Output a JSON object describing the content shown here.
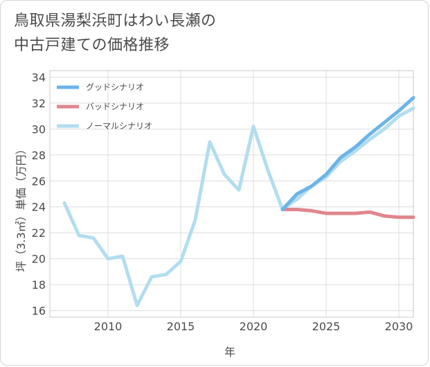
{
  "title_lines": [
    "鳥取県湯梨浜町はわい長瀬の",
    "中古戸建ての価格推移"
  ],
  "chart_data": {
    "type": "line",
    "title": "鳥取県湯梨浜町はわい長瀬の中古戸建ての価格推移",
    "xlabel": "年",
    "ylabel": "坪（3.3㎡）単価（万円）",
    "xlim": [
      2006,
      2031
    ],
    "ylim": [
      15.5,
      34.5
    ],
    "xticks": [
      2010,
      2015,
      2020,
      2025,
      2030
    ],
    "yticks": [
      16,
      18,
      20,
      22,
      24,
      26,
      28,
      30,
      32,
      34
    ],
    "grid": true,
    "legend_position": "top-left",
    "series": [
      {
        "name": "グッドシナリオ",
        "color": "#6cb4e8",
        "x": [
          2022,
          2023,
          2024,
          2025,
          2026,
          2027,
          2028,
          2029,
          2030,
          2031
        ],
        "y": [
          23.8,
          25.0,
          25.6,
          26.5,
          27.8,
          28.6,
          29.6,
          30.5,
          31.4,
          32.4
        ]
      },
      {
        "name": "バッドシナリオ",
        "color": "#e0868d",
        "x": [
          2022,
          2023,
          2024,
          2025,
          2026,
          2027,
          2028,
          2029,
          2030,
          2031
        ],
        "y": [
          23.8,
          23.8,
          23.7,
          23.5,
          23.5,
          23.5,
          23.6,
          23.3,
          23.2,
          23.2
        ]
      },
      {
        "name": "ノーマルシナリオ",
        "color": "#b3ddef",
        "x": [
          2007,
          2008,
          2009,
          2010,
          2011,
          2012,
          2013,
          2014,
          2015,
          2016,
          2017,
          2018,
          2019,
          2020,
          2021,
          2022,
          2023,
          2024,
          2025,
          2026,
          2027,
          2028,
          2029,
          2030,
          2031
        ],
        "y": [
          24.3,
          21.8,
          21.6,
          20.0,
          20.2,
          16.4,
          18.6,
          18.8,
          19.8,
          23.0,
          29.0,
          26.5,
          25.3,
          30.2,
          26.8,
          23.8,
          24.6,
          25.6,
          26.3,
          27.5,
          28.3,
          29.2,
          30.0,
          31.0,
          31.6
        ]
      }
    ]
  }
}
